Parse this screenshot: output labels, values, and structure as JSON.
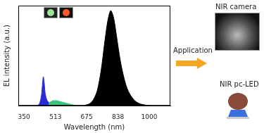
{
  "chart_data": {
    "type": "line",
    "x_label": "Wavelength (nm)",
    "y_label": "EL intensity (a.u.)",
    "xlim": [
      320,
      1110
    ],
    "xticks": [
      350,
      513,
      675,
      838,
      1000
    ],
    "ylim": [
      0,
      1
    ],
    "tick_labels": "x",
    "grid": false,
    "series": [
      {
        "color": "#2b2bd6",
        "x": [
          420,
          430,
          440,
          445,
          450,
          455,
          460,
          470,
          480
        ],
        "values": [
          0,
          0.02,
          0.1,
          0.2,
          0.29,
          0.22,
          0.12,
          0.05,
          0.03
        ]
      },
      {
        "color": "#3cc47c",
        "x": [
          480,
          490,
          500,
          520,
          540,
          560,
          580,
          600,
          620
        ],
        "values": [
          0.03,
          0.04,
          0.05,
          0.05,
          0.04,
          0.03,
          0.02,
          0.01,
          0
        ]
      },
      {
        "color": "#000000",
        "x": [
          660,
          690,
          710,
          730,
          750,
          770,
          785,
          800,
          815,
          830,
          850,
          870,
          890,
          920,
          950,
          1000
        ],
        "values": [
          0,
          0.02,
          0.06,
          0.15,
          0.35,
          0.65,
          0.85,
          0.95,
          0.88,
          0.7,
          0.45,
          0.27,
          0.15,
          0.06,
          0.02,
          0
        ]
      }
    ],
    "annotations": [
      "Application",
      "NIR camera",
      "NIR pc-LED"
    ]
  }
}
